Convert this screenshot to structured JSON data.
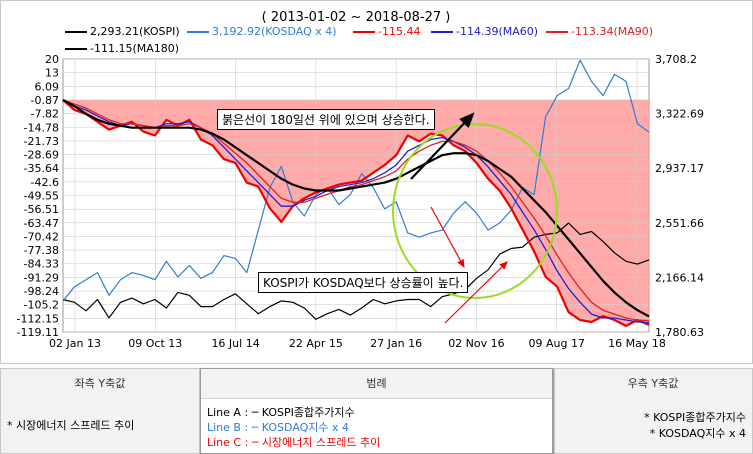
{
  "chart_data": {
    "type": "line",
    "title": "( 2013-01-02 ~ 2018-08-27 )",
    "legend": [
      {
        "label": "2,293.21(KOSPI)",
        "color": "#000000"
      },
      {
        "label": "3,192.92(KOSDAQ x 4)",
        "color": "#2f7bd6"
      },
      {
        "label": "-115.44",
        "color": "#ee0000"
      },
      {
        "label": "-114.39(MA60)",
        "color": "#2020d0"
      },
      {
        "label": "-113.34(MA90)",
        "color": "#e02020"
      },
      {
        "label": "-111.15(MA180)",
        "color": "#000000"
      }
    ],
    "left_axis": {
      "ticks": [
        "20",
        "13",
        "6.09",
        "-0.87",
        "-7.82",
        "-14.78",
        "-21.73",
        "-28.69",
        "-35.64",
        "-42.6",
        "-49.55",
        "-56.51",
        "-63.47",
        "-70.42",
        "-77.38",
        "-84.33",
        "-91.29",
        "-98.24",
        "-105.2",
        "-112.15",
        "-119.11"
      ],
      "ylim": [
        -119.11,
        20
      ]
    },
    "right_axis": {
      "ticks": [
        "3,708.2",
        "3,322.69",
        "2,937.17",
        "2,551.66",
        "2,166.14",
        "1,780.63"
      ],
      "ylim": [
        1780.63,
        3708.2
      ]
    },
    "x_ticks": [
      "02 Jan 13",
      "09 Oct 13",
      "16 Jul 14",
      "22 Apr 15",
      "27 Jan 16",
      "02 Nov 16",
      "09 Aug 17",
      "16 May 18"
    ],
    "series": [
      {
        "name": "KOSPI",
        "axis": "right",
        "color": "#000000",
        "values": [
          2010,
          1990,
          1930,
          2010,
          1880,
          1990,
          2020,
          1980,
          2010,
          1950,
          2060,
          2040,
          1960,
          1960,
          2010,
          2050,
          1980,
          1910,
          1960,
          2000,
          1990,
          1950,
          1870,
          1910,
          1940,
          1900,
          1950,
          2010,
          1980,
          2000,
          2010,
          2010,
          1960,
          2030,
          2050,
          2080,
          2160,
          2220,
          2330,
          2370,
          2380,
          2450,
          2470,
          2480,
          2550,
          2470,
          2490,
          2420,
          2340,
          2280,
          2260,
          2290
        ]
      },
      {
        "name": "KOSDAQ x 4",
        "axis": "right",
        "color": "#2f7bd6",
        "values": [
          2000,
          2100,
          2150,
          2200,
          2040,
          2150,
          2200,
          2180,
          2150,
          2280,
          2170,
          2250,
          2160,
          2200,
          2320,
          2300,
          2200,
          2500,
          2800,
          2950,
          2700,
          2600,
          2750,
          2800,
          2680,
          2750,
          2900,
          2800,
          2650,
          2700,
          2480,
          2450,
          2480,
          2500,
          2620,
          2700,
          2620,
          2500,
          2550,
          2640,
          2800,
          2750,
          3300,
          3450,
          3500,
          3700,
          3550,
          3450,
          3600,
          3550,
          3250,
          3192.92
        ]
      },
      {
        "name": "-115.44",
        "axis": "left",
        "color": "#ee0000",
        "values": [
          -0.87,
          -6,
          -8,
          -12,
          -16,
          -14,
          -12,
          -17,
          -19,
          -11,
          -14,
          -11,
          -21,
          -24,
          -31,
          -33,
          -43,
          -45,
          -56,
          -63,
          -55,
          -51,
          -48,
          -46,
          -44,
          -43,
          -42,
          -38,
          -34,
          -29,
          -19,
          -22,
          -18,
          -19,
          -24,
          -27,
          -33,
          -41,
          -47,
          -56,
          -67,
          -78,
          -91,
          -96,
          -109,
          -113,
          -114,
          -111,
          -113,
          -116,
          -113,
          -115.44
        ]
      },
      {
        "name": "MA60",
        "axis": "left",
        "color": "#2020d0",
        "values": [
          -0.87,
          -4,
          -6,
          -9,
          -12,
          -14,
          -13,
          -14,
          -15,
          -13,
          -13,
          -12,
          -15,
          -19,
          -25,
          -31,
          -37,
          -43,
          -49,
          -55,
          -55,
          -52,
          -50,
          -47,
          -45,
          -44,
          -43,
          -41,
          -38,
          -34,
          -27,
          -24,
          -21,
          -20,
          -22,
          -25,
          -29,
          -35,
          -42,
          -49,
          -58,
          -67,
          -77,
          -88,
          -97,
          -104,
          -110,
          -112,
          -112,
          -113,
          -114,
          -114.39
        ]
      },
      {
        "name": "MA90",
        "axis": "left",
        "color": "#e02020",
        "values": [
          -0.87,
          -3,
          -5,
          -8,
          -11,
          -13,
          -13,
          -14,
          -15,
          -14,
          -14,
          -13,
          -15,
          -18,
          -23,
          -28,
          -33,
          -39,
          -45,
          -51,
          -53,
          -53,
          -51,
          -49,
          -47,
          -45,
          -44,
          -42,
          -40,
          -37,
          -31,
          -27,
          -24,
          -22,
          -22,
          -24,
          -27,
          -32,
          -38,
          -45,
          -53,
          -61,
          -70,
          -80,
          -89,
          -97,
          -104,
          -108,
          -110,
          -112,
          -113,
          -113.34
        ]
      },
      {
        "name": "MA180",
        "axis": "left",
        "color": "#000000",
        "values": [
          -0.87,
          -4,
          -8,
          -11,
          -13,
          -14,
          -15,
          -15,
          -15,
          -15,
          -15,
          -15,
          -16,
          -18,
          -21,
          -25,
          -29,
          -33,
          -37,
          -41,
          -44,
          -46,
          -47,
          -47,
          -47,
          -46,
          -45,
          -44,
          -43,
          -41,
          -38,
          -35,
          -32,
          -29,
          -28,
          -28,
          -29,
          -32,
          -36,
          -40,
          -46,
          -52,
          -58,
          -65,
          -72,
          -79,
          -86,
          -93,
          -99,
          -104,
          -108,
          -111.15
        ]
      }
    ],
    "fill_area": {
      "color": "#ff9a9a",
      "baseline": -0.87
    },
    "annotations": [
      {
        "text": "붉은선이 180일선 위에 있으며  상승한다."
      },
      {
        "text": "KOSPI가 KOSDAQ보다 상승률이 높다."
      }
    ],
    "grid": true
  },
  "bottom": {
    "left_title": "좌측 Y축값",
    "left_text": "* 시장에너지 스프레드 추이",
    "legend_title": "범례",
    "line_a": "Line A : ─ KOSPI종합주가지수",
    "line_b": "Line B : ─ KOSDAQ지수 x 4",
    "line_c": "Line C : ─ 시장에너지 스프레드 추이",
    "right_title": "우측 Y축값",
    "right_text_1": "* KOSPI종합주가지수",
    "right_text_2": "* KOSDAQ지수 x 4"
  },
  "colors": {
    "line_a": "#000000",
    "line_b": "#2f7bd6",
    "line_c": "#ee0000",
    "circle": "#99dd22"
  }
}
